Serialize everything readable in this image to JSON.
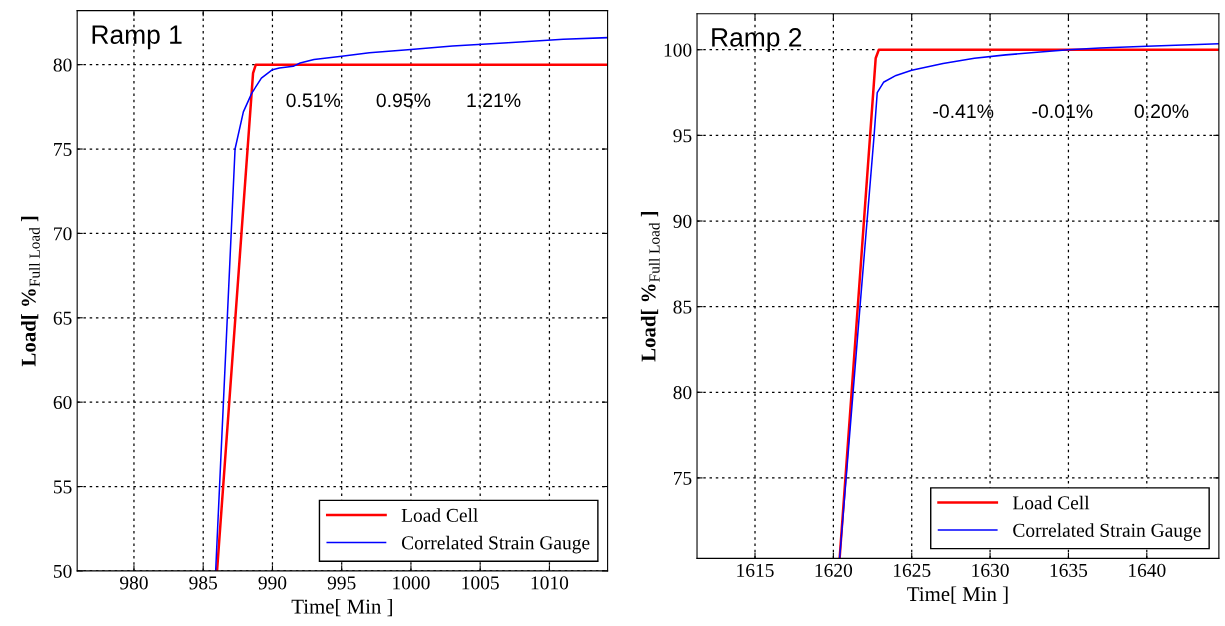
{
  "chart_data": [
    {
      "type": "line",
      "title": "Ramp 1",
      "xlabel": "Time[ Min ]",
      "ylabel": "Load[ %$_{Full Load}$ ]",
      "xlim": [
        975.9,
        1014.2
      ],
      "ylim": [
        50,
        83.2
      ],
      "xticks": [
        980,
        985,
        990,
        995,
        1000,
        1005,
        1010
      ],
      "yticks": [
        50,
        55,
        60,
        65,
        70,
        75,
        80
      ],
      "grid": true,
      "legend": "bottom right",
      "line_style": "solid",
      "series": [
        {
          "name": "Load Cell",
          "color": "#ff0000",
          "x": [
            986.0,
            988.6,
            988.8,
            990,
            995,
            1000,
            1005,
            1010,
            1014.2
          ],
          "values": [
            50,
            79.5,
            80,
            80,
            80,
            80,
            80,
            80,
            80
          ]
        },
        {
          "name": "Correlated Strain Gauge",
          "color": "#0000ff",
          "x": [
            985.9,
            987.3,
            987.9,
            988.5,
            989.2,
            990.0,
            990.5,
            991.5,
            992,
            993,
            995,
            997,
            1000,
            1003,
            1007,
            1011,
            1014.2
          ],
          "values": [
            50,
            75,
            77.2,
            78.3,
            79.2,
            79.7,
            79.8,
            79.9,
            80.1,
            80.3,
            80.5,
            80.7,
            80.9,
            81.1,
            81.3,
            81.5,
            81.6
          ]
        }
      ],
      "annotations": [
        "0.51%",
        "0.95%",
        "1.21%"
      ]
    },
    {
      "type": "line",
      "title": "Ramp 2",
      "xlabel": "Time[ Min ]",
      "ylabel": "Load[ %$_{Full Load}$ ]",
      "xlim": [
        1611.3,
        1644.6
      ],
      "ylim": [
        70.3,
        102.1
      ],
      "xticks": [
        1615,
        1620,
        1625,
        1630,
        1635,
        1640
      ],
      "yticks": [
        75,
        80,
        85,
        90,
        95,
        100
      ],
      "grid": true,
      "legend": "bottom right",
      "line_style": "solid",
      "series": [
        {
          "name": "Load Cell",
          "color": "#ff0000",
          "x": [
            1620.4,
            1622.7,
            1622.9,
            1625,
            1630,
            1635,
            1640,
            1644.6
          ],
          "values": [
            70.3,
            99.5,
            100,
            100,
            100,
            100,
            100,
            100
          ]
        },
        {
          "name": "Correlated Strain Gauge",
          "color": "#0000ff",
          "x": [
            1620.4,
            1621.7,
            1622.6,
            1622.8,
            1623.2,
            1624,
            1625,
            1627,
            1629,
            1631,
            1633,
            1635,
            1637,
            1640,
            1644.6
          ],
          "values": [
            70.3,
            85,
            95,
            97.5,
            98.1,
            98.5,
            98.8,
            99.2,
            99.5,
            99.7,
            99.85,
            100,
            100.1,
            100.2,
            100.35
          ]
        }
      ],
      "annotations": [
        "-0.41%",
        "-0.01%",
        "0.20%"
      ]
    }
  ]
}
